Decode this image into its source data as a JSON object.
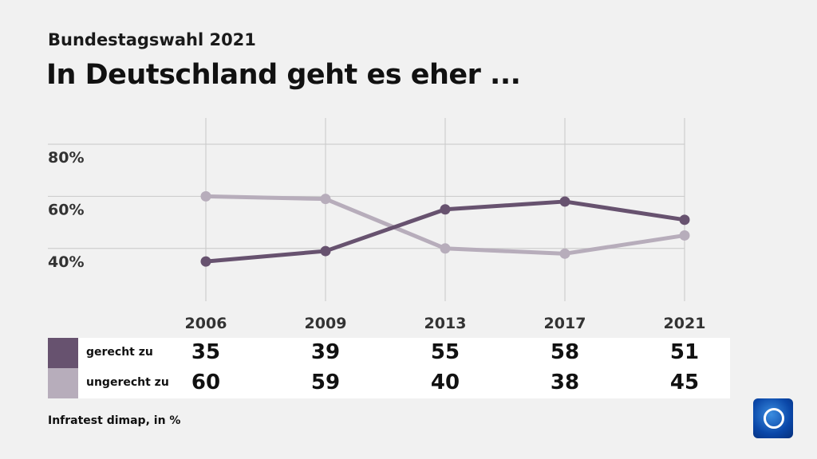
{
  "header": {
    "subtitle": "Bundestagswahl 2021",
    "title": "In Deutschland geht es eher ..."
  },
  "chart_data": {
    "type": "line",
    "categories": [
      "2006",
      "2009",
      "2013",
      "2017",
      "2021"
    ],
    "series": [
      {
        "name": "gerecht zu",
        "color": "#67526f",
        "values": [
          35,
          39,
          55,
          58,
          51
        ]
      },
      {
        "name": "ungerecht zu",
        "color": "#b7adbb",
        "values": [
          60,
          59,
          40,
          38,
          45
        ]
      }
    ],
    "yticks": [
      "40%",
      "60%",
      "80%"
    ],
    "ytick_values": [
      40,
      60,
      80
    ],
    "grid": true,
    "legend": "table-below"
  },
  "table": {
    "rows": [
      {
        "label": "gerecht zu",
        "values": [
          "35",
          "39",
          "55",
          "58",
          "51"
        ]
      },
      {
        "label": "ungerecht zu",
        "values": [
          "60",
          "59",
          "40",
          "38",
          "45"
        ]
      }
    ]
  },
  "footer": {
    "source": "Infratest dimap, in %",
    "logo": "tagesschau"
  }
}
